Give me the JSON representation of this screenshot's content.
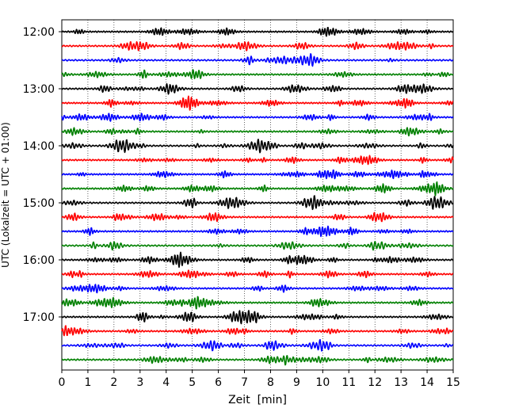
{
  "chart_data": {
    "type": "line",
    "subtype": "helicorder",
    "title": "",
    "xlabel": "Zeit  [min]",
    "ylabel": "UTC (Lokalzeit = UTC + 01:00)",
    "xlim": [
      0,
      15
    ],
    "x_ticks": [
      0,
      1,
      2,
      3,
      4,
      5,
      6,
      7,
      8,
      9,
      10,
      11,
      12,
      13,
      14,
      15
    ],
    "x_tick_labels": [
      "0",
      "1",
      "2",
      "3",
      "4",
      "5",
      "6",
      "7",
      "8",
      "9",
      "10",
      "11",
      "12",
      "13",
      "14",
      "15"
    ],
    "y_tick_labels": [
      "12:00",
      "13:00",
      "14:00",
      "15:00",
      "16:00",
      "17:00"
    ],
    "grid": "vertical dotted lines at each minute",
    "trace_interval_minutes": 15,
    "trace_colors": [
      "#000000",
      "#ff0000",
      "#0000ff",
      "#008000"
    ],
    "traces": [
      {
        "start": "12:00",
        "color_index": 0
      },
      {
        "start": "12:15",
        "color_index": 1
      },
      {
        "start": "12:30",
        "color_index": 2
      },
      {
        "start": "12:45",
        "color_index": 3
      },
      {
        "start": "13:00",
        "color_index": 0
      },
      {
        "start": "13:15",
        "color_index": 1
      },
      {
        "start": "13:30",
        "color_index": 2
      },
      {
        "start": "13:45",
        "color_index": 3
      },
      {
        "start": "14:00",
        "color_index": 0
      },
      {
        "start": "14:15",
        "color_index": 1
      },
      {
        "start": "14:30",
        "color_index": 2
      },
      {
        "start": "14:45",
        "color_index": 3
      },
      {
        "start": "15:00",
        "color_index": 0
      },
      {
        "start": "15:15",
        "color_index": 1
      },
      {
        "start": "15:30",
        "color_index": 2
      },
      {
        "start": "15:45",
        "color_index": 3
      },
      {
        "start": "16:00",
        "color_index": 0
      },
      {
        "start": "16:15",
        "color_index": 1
      },
      {
        "start": "16:30",
        "color_index": 2
      },
      {
        "start": "16:45",
        "color_index": 3
      },
      {
        "start": "17:00",
        "color_index": 0
      },
      {
        "start": "17:15",
        "color_index": 1
      },
      {
        "start": "17:30",
        "color_index": 2
      },
      {
        "start": "17:45",
        "color_index": 3
      }
    ]
  }
}
